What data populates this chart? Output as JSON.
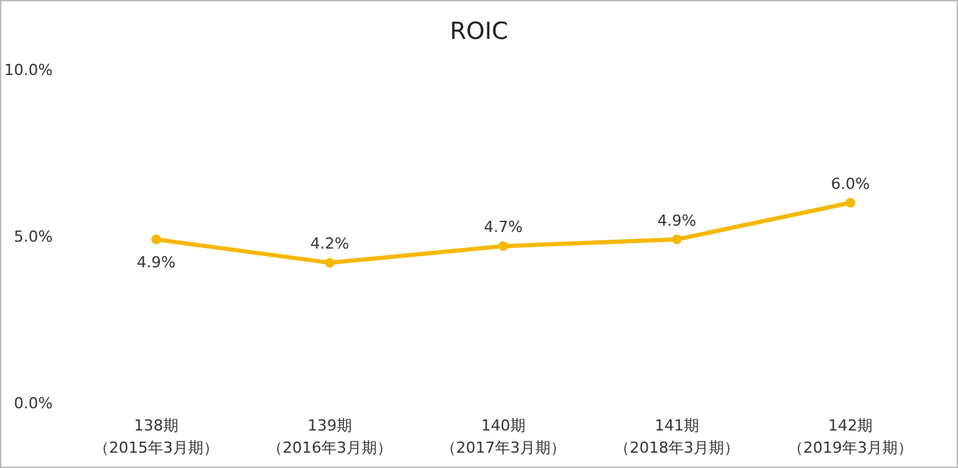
{
  "chart_data": {
    "type": "line",
    "title": "ROIC",
    "categories": [
      "138期（2015年3月期）",
      "139期（2016年3月期）",
      "140期（2017年3月期）",
      "141期（2018年3月期）",
      "142期（2019年3月期）"
    ],
    "series": [
      {
        "color": "#f5b800",
        "values": [
          4.9,
          4.2,
          4.7,
          4.9,
          6.0
        ],
        "value_labels": [
          "4.9%",
          "4.2%",
          "4.7%",
          "4.9%",
          "6.0%"
        ]
      }
    ],
    "ylim": [
      0,
      10
    ],
    "yticks": [
      {
        "value": 0,
        "label": "0.0%"
      },
      {
        "value": 5,
        "label": "5.0%"
      },
      {
        "value": 10,
        "label": "10.0%"
      }
    ],
    "marker": "circle",
    "line_style": "solid",
    "grid": false
  }
}
